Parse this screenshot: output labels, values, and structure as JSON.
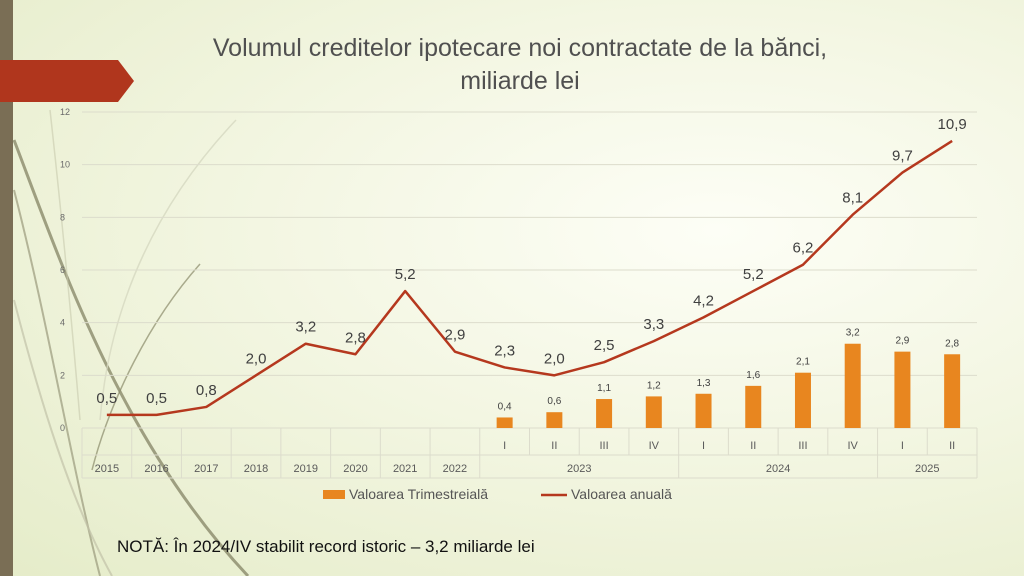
{
  "slide": {
    "title_line1": "Volumul creditelor ipotecare noi contractate de la bănci,",
    "title_line2": "miliarde lei",
    "note": "NOTĂ: În 2024/IV stabilit record istoric – 3,2 miliarde lei"
  },
  "colors": {
    "bar": "#e8861f",
    "line": "#b5381e",
    "arrow": "#b0361d",
    "left_bar": "#7a6e55"
  },
  "chart_data": {
    "type": "bar+line",
    "title": "Volumul creditelor ipotecare noi contractate de la bănci, miliarde lei",
    "ylim": [
      0,
      12
    ],
    "yticks": [
      "0",
      "2",
      "4",
      "6",
      "8",
      "10",
      "12"
    ],
    "grid": true,
    "legend_position": "bottom",
    "categories": [
      "2015",
      "2016",
      "2017",
      "2018",
      "2019",
      "2020",
      "2021",
      "2022",
      "I",
      "II",
      "III",
      "IV",
      "I",
      "II",
      "III",
      "IV",
      "I",
      "II"
    ],
    "category_groups": [
      {
        "label": "2023",
        "span": [
          8,
          11
        ]
      },
      {
        "label": "2024",
        "span": [
          12,
          15
        ]
      },
      {
        "label": "2025",
        "span": [
          16,
          17
        ]
      }
    ],
    "series": [
      {
        "name": "Valoarea Trimestreială",
        "type": "bar",
        "values": [
          null,
          null,
          null,
          null,
          null,
          null,
          null,
          null,
          0.4,
          0.6,
          1.1,
          1.2,
          1.3,
          1.6,
          2.1,
          3.2,
          2.9,
          2.8
        ],
        "labels": [
          "",
          "",
          "",
          "",
          "",
          "",
          "",
          "",
          "0,4",
          "0,6",
          "1,1",
          "1,2",
          "1,3",
          "1,6",
          "2,1",
          "3,2",
          "2,9",
          "2,8"
        ]
      },
      {
        "name": "Valoarea anuală",
        "type": "line",
        "values": [
          0.5,
          0.5,
          0.8,
          2.0,
          3.2,
          2.8,
          5.2,
          2.9,
          2.3,
          2.0,
          2.5,
          3.3,
          4.2,
          5.2,
          6.2,
          8.1,
          9.7,
          10.9
        ],
        "labels": [
          "0,5",
          "0,5",
          "0,8",
          "2,0",
          "3,2",
          "2,8",
          "5,2",
          "2,9",
          "2,3",
          "2,0",
          "2,5",
          "3,3",
          "4,2",
          "5,2",
          "6,2",
          "8,1",
          "9,7",
          "10,9"
        ]
      }
    ]
  }
}
